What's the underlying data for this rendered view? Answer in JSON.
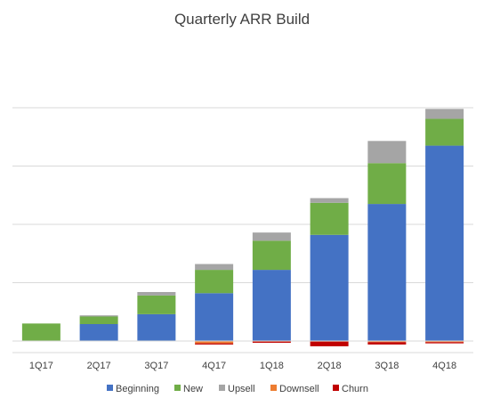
{
  "chart_data": {
    "type": "bar",
    "stacked": true,
    "title": "Quarterly ARR Build",
    "xlabel": "",
    "ylabel": "",
    "categories": [
      "1Q17",
      "2Q17",
      "3Q17",
      "4Q17",
      "1Q18",
      "2Q18",
      "3Q18",
      "4Q18"
    ],
    "y_tick_labels_shown": false,
    "ylim": [
      -0.2,
      4.6
    ],
    "grid": true,
    "legend_position": "bottom",
    "series": [
      {
        "name": "Beginning",
        "color": "#4472C4",
        "values": [
          0.0,
          0.29,
          0.46,
          0.82,
          1.22,
          1.82,
          2.35,
          3.35
        ]
      },
      {
        "name": "New",
        "color": "#70AD47",
        "values": [
          0.3,
          0.13,
          0.32,
          0.4,
          0.5,
          0.55,
          0.7,
          0.46
        ]
      },
      {
        "name": "Upsell",
        "color": "#A5A5A5",
        "values": [
          0.0,
          0.02,
          0.06,
          0.1,
          0.14,
          0.08,
          0.38,
          0.17
        ]
      },
      {
        "name": "Downsell",
        "color": "#ED7D31",
        "values": [
          0.0,
          0.0,
          0.0,
          -0.04,
          -0.01,
          -0.01,
          -0.02,
          -0.02
        ]
      },
      {
        "name": "Churn",
        "color": "#C00000",
        "values": [
          0.0,
          0.0,
          0.0,
          -0.02,
          -0.02,
          -0.08,
          -0.04,
          -0.02
        ]
      }
    ]
  }
}
